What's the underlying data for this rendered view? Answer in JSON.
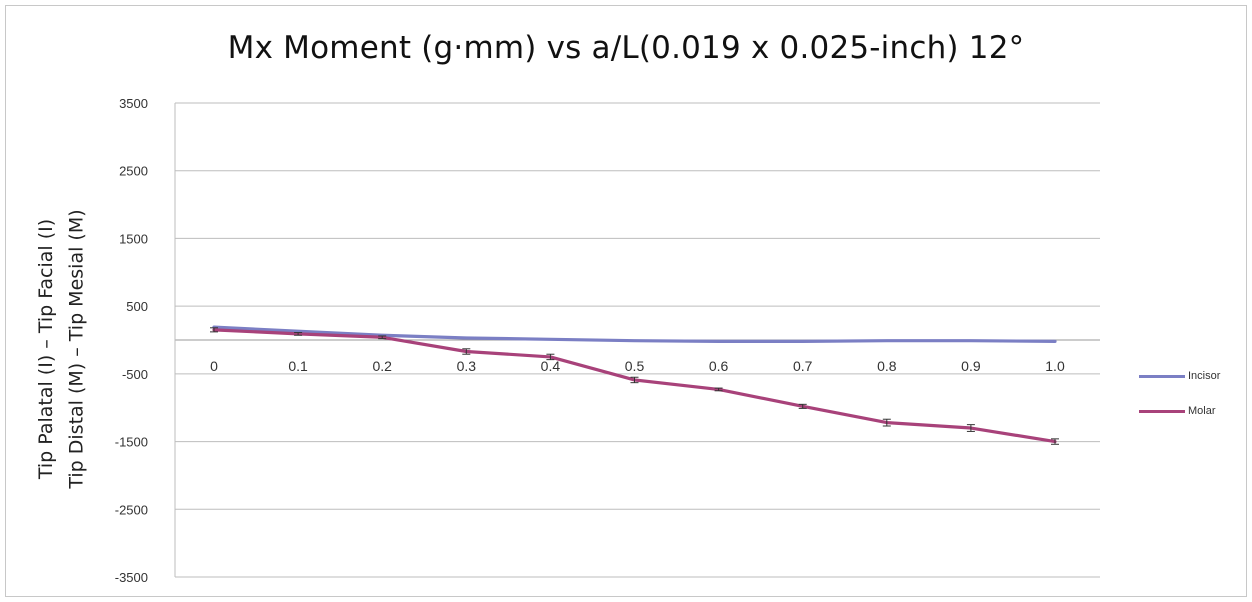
{
  "chart_data": {
    "type": "line",
    "title": "Mx Moment (g·mm) vs a/L(0.019 x 0.025-inch) 12°",
    "xlabel": "",
    "ylabel_lines": [
      "Tip Facial (I)",
      "Tip Mesial (M)",
      "–",
      "–",
      "Tip Palatal (I)",
      "Tip Distal (M)"
    ],
    "categories": [
      "0",
      "0.1",
      "0.2",
      "0.3",
      "0.4",
      "0.5",
      "0.6",
      "0.7",
      "0.8",
      "0.9",
      "1.0"
    ],
    "yticks": [
      3500,
      2500,
      1500,
      500,
      -500,
      -1500,
      -2500,
      -3500
    ],
    "ytick_labels": [
      "3500",
      "2500",
      "1500",
      "500",
      "-500",
      "-1500",
      "-2500",
      "-3500"
    ],
    "ylim": [
      -3500,
      3500
    ],
    "grid": true,
    "legend_position": "right",
    "series": [
      {
        "name": "Incisor",
        "color": "#7b7fc4",
        "values": [
          190,
          130,
          70,
          30,
          10,
          -10,
          -20,
          -20,
          -10,
          -10,
          -20
        ]
      },
      {
        "name": "Molar",
        "color": "#a8427a",
        "values": [
          150,
          90,
          40,
          -170,
          -250,
          -590,
          -730,
          -980,
          -1220,
          -1300,
          -1500
        ],
        "errors": [
          30,
          20,
          20,
          40,
          40,
          40,
          20,
          30,
          50,
          50,
          40
        ]
      }
    ]
  }
}
